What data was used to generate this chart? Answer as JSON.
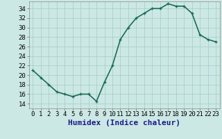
{
  "x": [
    0,
    1,
    2,
    3,
    4,
    5,
    6,
    7,
    8,
    9,
    10,
    11,
    12,
    13,
    14,
    15,
    16,
    17,
    18,
    19,
    20,
    21,
    22,
    23
  ],
  "y": [
    21,
    19.5,
    18,
    16.5,
    16,
    15.5,
    16,
    16,
    14.5,
    18.5,
    22,
    27.5,
    30,
    32,
    33,
    34,
    34,
    35,
    34.5,
    34.5,
    33,
    28.5,
    27.5,
    27
  ],
  "line_color": "#1a6b5a",
  "marker_color": "#1a6b5a",
  "bg_color": "#cce8e4",
  "grid_color": "#aacfcb",
  "xlabel": "Humidex (Indice chaleur)",
  "xlabel_color": "#1a1a8a",
  "xlabel_fontsize": 8,
  "xlim": [
    -0.5,
    23.5
  ],
  "ylim": [
    13,
    35.5
  ],
  "yticks": [
    14,
    16,
    18,
    20,
    22,
    24,
    26,
    28,
    30,
    32,
    34
  ],
  "xticks": [
    0,
    1,
    2,
    3,
    4,
    5,
    6,
    7,
    8,
    9,
    10,
    11,
    12,
    13,
    14,
    15,
    16,
    17,
    18,
    19,
    20,
    21,
    22,
    23
  ],
  "tick_label_fontsize": 6.5,
  "marker_size": 3.5,
  "line_width": 1.2
}
